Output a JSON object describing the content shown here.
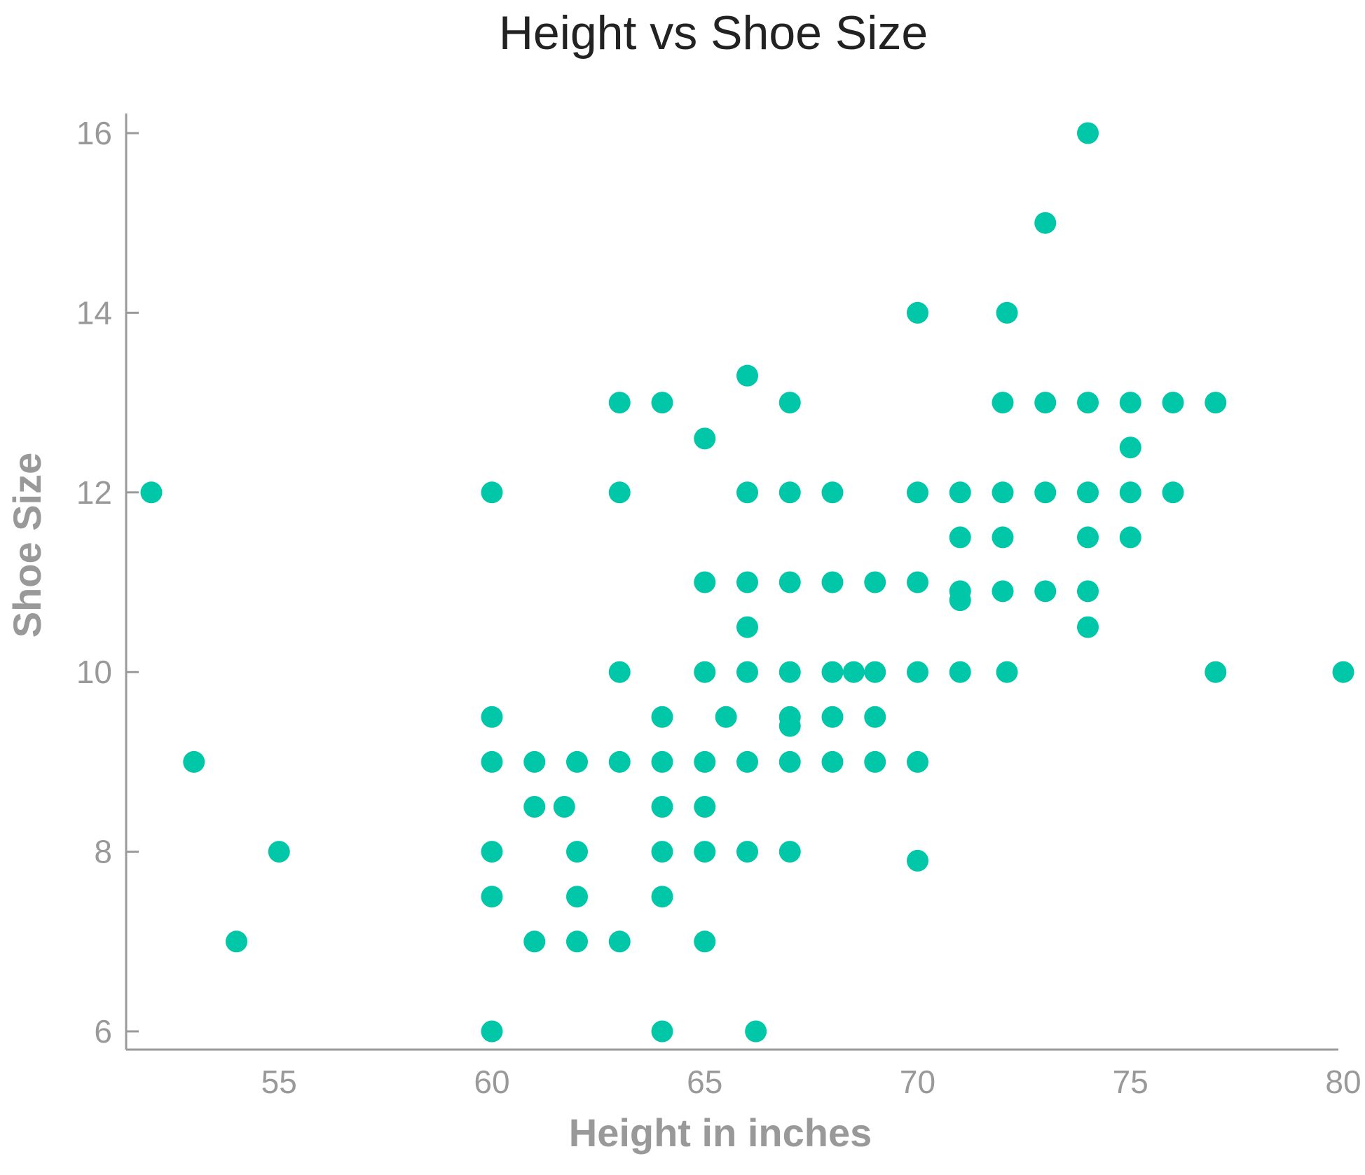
{
  "chart_data": {
    "type": "scatter",
    "title": "Height vs Shoe Size",
    "xlabel": "Height in inches",
    "ylabel": "Shoe Size",
    "xlim": [
      51.5,
      80.5
    ],
    "ylim": [
      5.8,
      16.2
    ],
    "xticks": [
      55,
      60,
      65,
      70,
      75,
      80
    ],
    "yticks": [
      6,
      8,
      10,
      12,
      14,
      16
    ],
    "grid": false,
    "marker_color": "#00c7a8",
    "points": [
      [
        52,
        12
      ],
      [
        53,
        9
      ],
      [
        54,
        7
      ],
      [
        55,
        8
      ],
      [
        60,
        12
      ],
      [
        60,
        9.5
      ],
      [
        60,
        9
      ],
      [
        60,
        8
      ],
      [
        60,
        7.5
      ],
      [
        60,
        6
      ],
      [
        61,
        9
      ],
      [
        61,
        8.5
      ],
      [
        61,
        7
      ],
      [
        61.7,
        8.5
      ],
      [
        62,
        9
      ],
      [
        62,
        8
      ],
      [
        62,
        7.5
      ],
      [
        62,
        7
      ],
      [
        63,
        13
      ],
      [
        63,
        12
      ],
      [
        63,
        10
      ],
      [
        63,
        9
      ],
      [
        63,
        7
      ],
      [
        64,
        13
      ],
      [
        64,
        9.5
      ],
      [
        64,
        9
      ],
      [
        64,
        8.5
      ],
      [
        64,
        8
      ],
      [
        64,
        7.5
      ],
      [
        64,
        6
      ],
      [
        65,
        12.6
      ],
      [
        65,
        11
      ],
      [
        65,
        10
      ],
      [
        65,
        9
      ],
      [
        65,
        8.5
      ],
      [
        65,
        8
      ],
      [
        65,
        7
      ],
      [
        65.5,
        9.5
      ],
      [
        66,
        13.3
      ],
      [
        66,
        12
      ],
      [
        66,
        11
      ],
      [
        66,
        10.5
      ],
      [
        66,
        10
      ],
      [
        66,
        9
      ],
      [
        66,
        8
      ],
      [
        66.2,
        6
      ],
      [
        67,
        13
      ],
      [
        67,
        12
      ],
      [
        67,
        11
      ],
      [
        67,
        10
      ],
      [
        67,
        9.5
      ],
      [
        67,
        9.4
      ],
      [
        67,
        9
      ],
      [
        67,
        8
      ],
      [
        68,
        12
      ],
      [
        68,
        11
      ],
      [
        68,
        10
      ],
      [
        68,
        9.5
      ],
      [
        68,
        9
      ],
      [
        68.5,
        10
      ],
      [
        69,
        11
      ],
      [
        69,
        10
      ],
      [
        69,
        9.5
      ],
      [
        69,
        9
      ],
      [
        70,
        14
      ],
      [
        70,
        12
      ],
      [
        70,
        11
      ],
      [
        70,
        10
      ],
      [
        70,
        9
      ],
      [
        70,
        7.9
      ],
      [
        71,
        12
      ],
      [
        71,
        11.5
      ],
      [
        71,
        10.9
      ],
      [
        71,
        10.8
      ],
      [
        71,
        10
      ],
      [
        72,
        13
      ],
      [
        72,
        12
      ],
      [
        72,
        11.5
      ],
      [
        72,
        10.9
      ],
      [
        72.1,
        14
      ],
      [
        72.1,
        10
      ],
      [
        73,
        15
      ],
      [
        73,
        13
      ],
      [
        73,
        12
      ],
      [
        73,
        10.9
      ],
      [
        74,
        16
      ],
      [
        74,
        13
      ],
      [
        74,
        12
      ],
      [
        74,
        11.5
      ],
      [
        74,
        10.9
      ],
      [
        74,
        10.5
      ],
      [
        75,
        13
      ],
      [
        75,
        12.5
      ],
      [
        75,
        12
      ],
      [
        75,
        11.5
      ],
      [
        76,
        13
      ],
      [
        76,
        12
      ],
      [
        77,
        13
      ],
      [
        77,
        10
      ],
      [
        80,
        10
      ]
    ]
  }
}
